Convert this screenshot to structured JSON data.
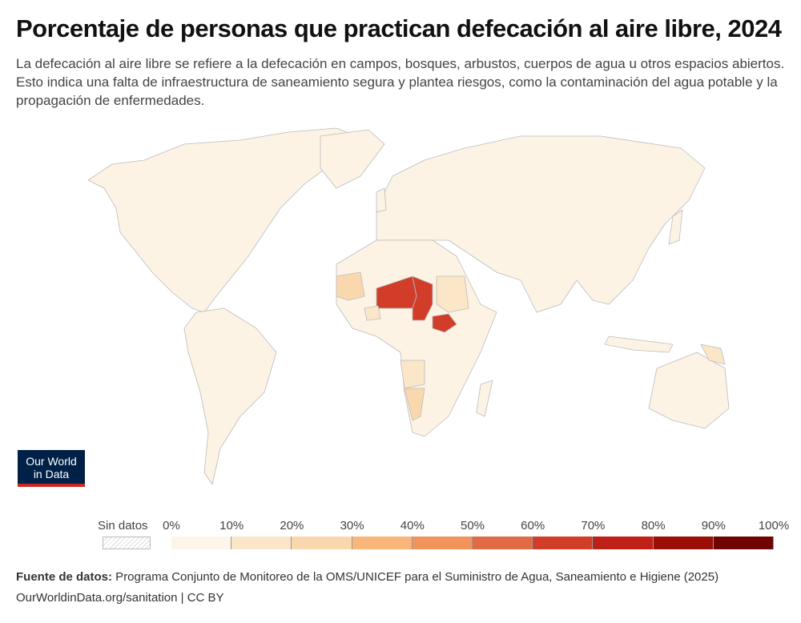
{
  "title": "Porcentaje de personas que practican defecación al aire libre, 2024",
  "subtitle": "La defecación al aire libre se refiere a la defecación en campos, bosques, arbustos, cuerpos de agua u otros espacios abiertos. Esto indica una falta de infraestructura de saneamiento segura y plantea riesgos, como la contaminación del agua potable y la propagación de enfermedades.",
  "logo": "Our World in Data",
  "legend": {
    "no_data": "Sin datos",
    "ticks": [
      "0%",
      "10%",
      "20%",
      "30%",
      "40%",
      "50%",
      "60%",
      "70%",
      "80%",
      "90%",
      "100%"
    ],
    "colors": [
      "#fdf5ea",
      "#fbe6c8",
      "#fad8ae",
      "#f8b679",
      "#f2935a",
      "#e16a45",
      "#d23d2a",
      "#bf2118",
      "#9a0e06",
      "#6f0404"
    ]
  },
  "chart_data": {
    "type": "choropleth",
    "year": 2024,
    "unit": "%",
    "scale": [
      0,
      100
    ],
    "regions": [
      {
        "name": "Niger",
        "value": 65
      },
      {
        "name": "Chad",
        "value": 65
      },
      {
        "name": "South Sudan",
        "value": 60
      },
      {
        "name": "Mauritania",
        "value": 22
      },
      {
        "name": "Sudan",
        "value": 18
      },
      {
        "name": "Angola",
        "value": 18
      },
      {
        "name": "Namibia",
        "value": 25
      },
      {
        "name": "Burkina Faso",
        "value": 18
      },
      {
        "name": "Papua New Guinea",
        "value": 12
      }
    ]
  },
  "footer": {
    "source_label": "Fuente de datos:",
    "source": " Programa Conjunto de Monitoreo de la OMS/UNICEF para el Suministro de Agua, Saneamiento e Higiene (2025)",
    "url": "OurWorldinData.org/sanitation | CC BY"
  }
}
